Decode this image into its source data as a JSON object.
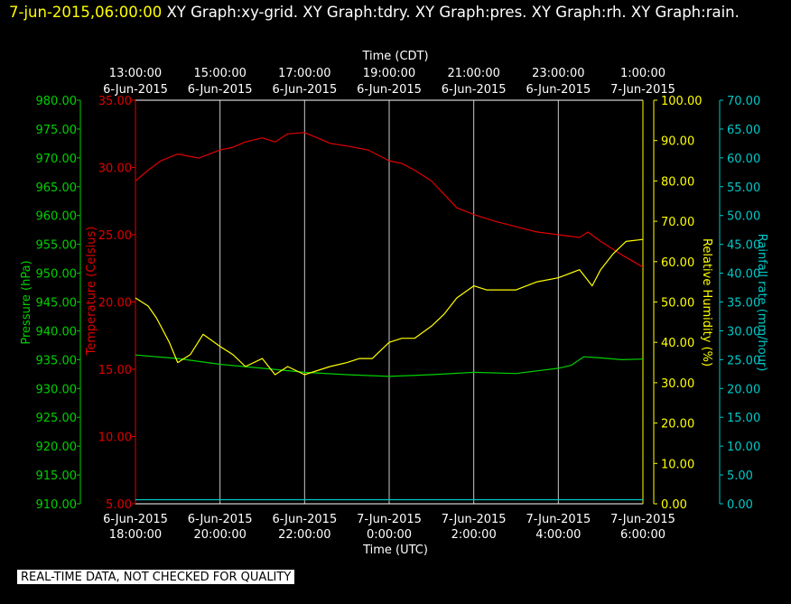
{
  "header": {
    "timestamp": "7-jun-2015,06:00:00",
    "titles": "XY Graph:xy-grid.  XY Graph:tdry.  XY Graph:pres.  XY Graph:rh.  XY Graph:rain."
  },
  "footer": {
    "quality_note": "REAL-TIME DATA, NOT CHECKED FOR QUALITY"
  },
  "colors": {
    "pressure": "#00d000",
    "temperature": "#e00000",
    "humidity": "#ffff00",
    "rain": "#00c8c8",
    "grid": "#c8c8c8",
    "text": "#ffffff"
  },
  "chart_data": {
    "type": "line",
    "grid": true,
    "x_top": {
      "label": "Time (CDT)",
      "ticks": [
        {
          "time": "13:00:00",
          "date": "6-Jun-2015"
        },
        {
          "time": "15:00:00",
          "date": "6-Jun-2015"
        },
        {
          "time": "17:00:00",
          "date": "6-Jun-2015"
        },
        {
          "time": "19:00:00",
          "date": "6-Jun-2015"
        },
        {
          "time": "21:00:00",
          "date": "6-Jun-2015"
        },
        {
          "time": "23:00:00",
          "date": "6-Jun-2015"
        },
        {
          "time": "1:00:00",
          "date": "7-Jun-2015"
        }
      ]
    },
    "x_bottom": {
      "label": "Time (UTC)",
      "ticks": [
        {
          "date": "6-Jun-2015",
          "time": "18:00:00"
        },
        {
          "date": "6-Jun-2015",
          "time": "20:00:00"
        },
        {
          "date": "6-Jun-2015",
          "time": "22:00:00"
        },
        {
          "date": "7-Jun-2015",
          "time": "0:00:00"
        },
        {
          "date": "7-Jun-2015",
          "time": "2:00:00"
        },
        {
          "date": "7-Jun-2015",
          "time": "4:00:00"
        },
        {
          "date": "7-Jun-2015",
          "time": "6:00:00"
        }
      ]
    },
    "axes": {
      "pressure": {
        "label": "Pressure (hPa)",
        "min": 910,
        "max": 980,
        "ticks": [
          "910.00",
          "915.00",
          "920.00",
          "925.00",
          "930.00",
          "935.00",
          "940.00",
          "945.00",
          "950.00",
          "955.00",
          "960.00",
          "965.00",
          "970.00",
          "975.00",
          "980.00"
        ]
      },
      "temperature": {
        "label": "Temperature (Celsius)",
        "min": 5,
        "max": 35,
        "ticks": [
          "5.00",
          "10.00",
          "15.00",
          "20.00",
          "25.00",
          "30.00",
          "35.00"
        ]
      },
      "humidity": {
        "label": "Relative Humidity (%)",
        "min": 0,
        "max": 100,
        "ticks": [
          "0.00",
          "10.00",
          "20.00",
          "30.00",
          "40.00",
          "50.00",
          "60.00",
          "70.00",
          "80.00",
          "90.00",
          "100.00"
        ]
      },
      "rain": {
        "label": "Rainfall rate (mm/hour)",
        "min": 0,
        "max": 70,
        "ticks": [
          "0.00",
          "5.00",
          "10.00",
          "15.00",
          "20.00",
          "25.00",
          "30.00",
          "35.00",
          "40.00",
          "45.00",
          "50.00",
          "55.00",
          "60.00",
          "65.00",
          "70.00"
        ]
      }
    },
    "x_range_hours_utc": [
      18,
      30
    ],
    "series": [
      {
        "name": "tdry",
        "axis": "temperature",
        "x": [
          18.0,
          18.3,
          18.6,
          19.0,
          19.5,
          20.0,
          20.3,
          20.6,
          21.0,
          21.3,
          21.6,
          22.0,
          22.3,
          22.6,
          23.0,
          23.5,
          24.0,
          24.3,
          24.6,
          25.0,
          25.3,
          25.6,
          26.0,
          26.5,
          27.0,
          27.5,
          28.0,
          28.5,
          28.7,
          29.0,
          29.5,
          30.0
        ],
        "y": [
          29.0,
          29.8,
          30.5,
          31.0,
          30.7,
          31.3,
          31.5,
          31.9,
          32.2,
          31.9,
          32.5,
          32.6,
          32.2,
          31.8,
          31.6,
          31.3,
          30.5,
          30.3,
          29.8,
          29.0,
          28.0,
          27.0,
          26.5,
          26.0,
          25.6,
          25.2,
          25.0,
          24.8,
          25.2,
          24.5,
          23.5,
          22.6
        ]
      },
      {
        "name": "pres",
        "axis": "pressure",
        "x": [
          18.0,
          19.0,
          20.0,
          21.0,
          22.0,
          23.0,
          24.0,
          25.0,
          26.0,
          27.0,
          28.0,
          28.3,
          28.6,
          29.0,
          29.5,
          30.0
        ],
        "y": [
          935.8,
          935.2,
          934.2,
          933.5,
          932.8,
          932.4,
          932.1,
          932.4,
          932.8,
          932.6,
          933.5,
          934.0,
          935.5,
          935.3,
          935.0,
          935.1
        ]
      },
      {
        "name": "rh",
        "axis": "humidity",
        "x": [
          18.0,
          18.3,
          18.5,
          18.8,
          19.0,
          19.3,
          19.6,
          20.0,
          20.3,
          20.6,
          21.0,
          21.3,
          21.6,
          22.0,
          22.3,
          22.6,
          23.0,
          23.3,
          23.6,
          24.0,
          24.3,
          24.6,
          25.0,
          25.3,
          25.6,
          26.0,
          26.3,
          26.6,
          27.0,
          27.5,
          28.0,
          28.5,
          28.8,
          29.0,
          29.3,
          29.6,
          30.0
        ],
        "y": [
          51,
          49,
          46,
          40,
          35,
          37,
          42,
          39,
          37,
          34,
          36,
          32,
          34,
          32,
          33,
          34,
          35,
          36,
          36,
          40,
          41,
          41,
          44,
          47,
          51,
          54,
          53,
          53,
          53,
          55,
          56,
          58,
          54,
          58,
          62,
          65,
          65.5
        ]
      },
      {
        "name": "rain",
        "axis": "rain",
        "x": [
          18.0,
          30.0
        ],
        "y": [
          0.7,
          0.7
        ]
      }
    ]
  }
}
